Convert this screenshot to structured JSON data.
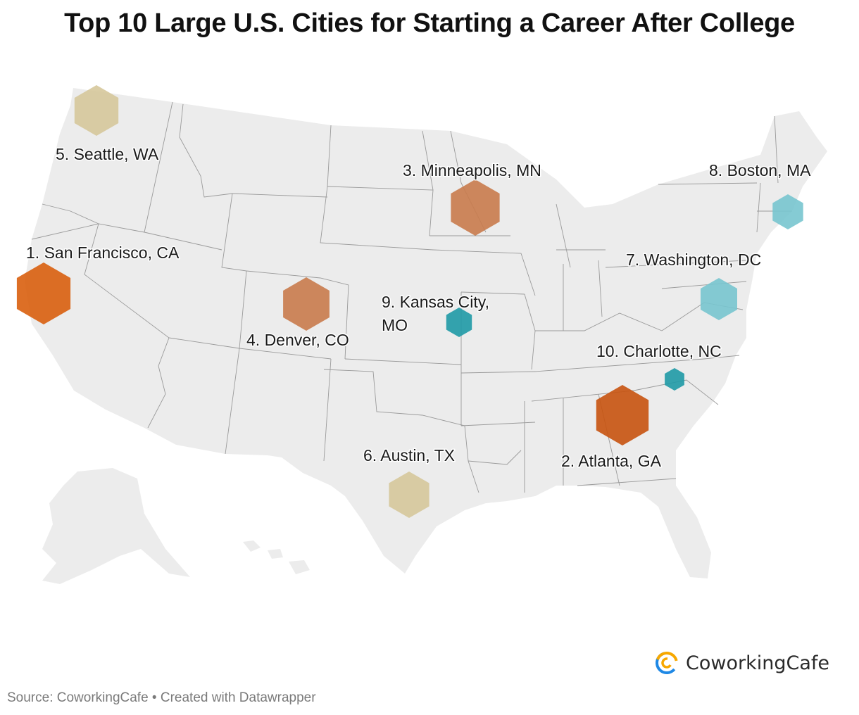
{
  "title": "Top 10 Large U.S. Cities for Starting a Career After College",
  "cities": [
    {
      "rank": 1,
      "label": "1. San Francisco, CA",
      "color": "#d95f0e"
    },
    {
      "rank": 2,
      "label": "2. Atlanta, GA",
      "color": "#c8530f"
    },
    {
      "rank": 3,
      "label": "3. Minneapolis, MN",
      "color": "#c97b4c"
    },
    {
      "rank": 4,
      "label": "4. Denver, CO",
      "color": "#c97b4c"
    },
    {
      "rank": 5,
      "label": "5. Seattle, WA",
      "color": "#d6c89b"
    },
    {
      "rank": 6,
      "label": "6. Austin, TX",
      "color": "#d6c89b"
    },
    {
      "rank": 7,
      "label": "7. Washington, DC",
      "color": "#78c5cf"
    },
    {
      "rank": 8,
      "label": "8. Boston, MA",
      "color": "#78c5cf"
    },
    {
      "rank": 9,
      "label_line1": "9. Kansas City,",
      "label_line2": "MO",
      "color": "#1f9aa6"
    },
    {
      "rank": 10,
      "label": "10. Charlotte, NC",
      "color": "#1f9aa6"
    }
  ],
  "logo": {
    "name": "CoworkingCafe",
    "icon": "coworkingcafe-logo-icon"
  },
  "source": "Source: CoworkingCafe • Created with Datawrapper"
}
